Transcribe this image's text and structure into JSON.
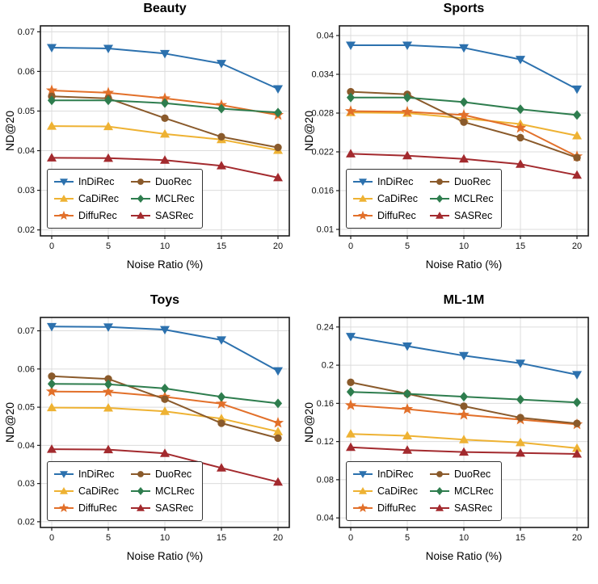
{
  "figure": {
    "xlabel": "Noise Ratio (%)",
    "ylabel": "ND@20"
  },
  "series_meta": [
    {
      "name": "InDiRec",
      "color": "#2c71ae",
      "marker": "triangle-down"
    },
    {
      "name": "CaDiRec",
      "color": "#eeb233",
      "marker": "triangle-up"
    },
    {
      "name": "DiffuRec",
      "color": "#e2702a",
      "marker": "star"
    },
    {
      "name": "DuoRec",
      "color": "#8a5a2b",
      "marker": "circle"
    },
    {
      "name": "MCLRec",
      "color": "#2e7d4e",
      "marker": "diamond"
    },
    {
      "name": "SASRec",
      "color": "#a32a2e",
      "marker": "triangle-up"
    }
  ],
  "chart_data": [
    {
      "type": "line",
      "title": "Beauty",
      "xlabel": "Noise Ratio (%)",
      "ylabel": "ND@20",
      "x": [
        0,
        5,
        10,
        15,
        20
      ],
      "xlim": [
        -1,
        21
      ],
      "ylim": [
        0.0185,
        0.0715
      ],
      "xticks": [
        0,
        5,
        10,
        15,
        20
      ],
      "xtick_labels": [
        "0",
        "5",
        "10",
        "15",
        "20"
      ],
      "yticks": [
        0.02,
        0.03,
        0.04,
        0.05,
        0.06,
        0.07
      ],
      "ytick_labels": [
        "0.02",
        "0.03",
        "0.04",
        "0.05",
        "0.06",
        "0.07"
      ],
      "legend_position": "lower left",
      "grid": true,
      "series": [
        {
          "name": "InDiRec",
          "values": [
            0.066,
            0.0658,
            0.0645,
            0.062,
            0.0556
          ]
        },
        {
          "name": "CaDiRec",
          "values": [
            0.0462,
            0.0461,
            0.0442,
            0.0428,
            0.0401
          ]
        },
        {
          "name": "DiffuRec",
          "values": [
            0.0552,
            0.0546,
            0.0532,
            0.0515,
            0.049
          ]
        },
        {
          "name": "DuoRec",
          "values": [
            0.0537,
            0.0532,
            0.0482,
            0.0435,
            0.0408
          ]
        },
        {
          "name": "MCLRec",
          "values": [
            0.0527,
            0.0527,
            0.052,
            0.0506,
            0.0496
          ]
        },
        {
          "name": "SASRec",
          "values": [
            0.0382,
            0.0381,
            0.0376,
            0.0362,
            0.0332
          ]
        }
      ]
    },
    {
      "type": "line",
      "title": "Sports",
      "xlabel": "Noise Ratio (%)",
      "ylabel": "ND@20",
      "x": [
        0,
        5,
        10,
        15,
        20
      ],
      "xlim": [
        -1,
        21
      ],
      "ylim": [
        0.009,
        0.0415
      ],
      "xticks": [
        0,
        5,
        10,
        15,
        20
      ],
      "xtick_labels": [
        "0",
        "5",
        "10",
        "15",
        "20"
      ],
      "yticks": [
        0.01,
        0.016,
        0.022,
        0.028,
        0.034,
        0.04
      ],
      "ytick_labels": [
        "0.01",
        "0.016",
        "0.022",
        "0.028",
        "0.034",
        "0.04"
      ],
      "legend_position": "lower left",
      "grid": true,
      "series": [
        {
          "name": "InDiRec",
          "values": [
            0.0385,
            0.0385,
            0.0381,
            0.0363,
            0.0317
          ]
        },
        {
          "name": "CaDiRec",
          "values": [
            0.0281,
            0.028,
            0.0272,
            0.0263,
            0.0245
          ]
        },
        {
          "name": "DiffuRec",
          "values": [
            0.0283,
            0.0282,
            0.0277,
            0.0257,
            0.0213
          ]
        },
        {
          "name": "DuoRec",
          "values": [
            0.0313,
            0.0309,
            0.0266,
            0.0242,
            0.0211
          ]
        },
        {
          "name": "MCLRec",
          "values": [
            0.0304,
            0.0304,
            0.0297,
            0.0286,
            0.0277
          ]
        },
        {
          "name": "SASRec",
          "values": [
            0.0217,
            0.0214,
            0.0209,
            0.0201,
            0.0184
          ]
        }
      ]
    },
    {
      "type": "line",
      "title": "Toys",
      "xlabel": "Noise Ratio (%)",
      "ylabel": "ND@20",
      "x": [
        0,
        5,
        10,
        15,
        20
      ],
      "xlim": [
        -1,
        21
      ],
      "ylim": [
        0.0185,
        0.0735
      ],
      "xticks": [
        0,
        5,
        10,
        15,
        20
      ],
      "xtick_labels": [
        "0",
        "5",
        "10",
        "15",
        "20"
      ],
      "yticks": [
        0.02,
        0.03,
        0.04,
        0.05,
        0.06,
        0.07
      ],
      "ytick_labels": [
        "0.02",
        "0.03",
        "0.04",
        "0.05",
        "0.06",
        "0.07"
      ],
      "legend_position": "lower left",
      "grid": true,
      "series": [
        {
          "name": "InDiRec",
          "values": [
            0.0711,
            0.071,
            0.0703,
            0.0676,
            0.0595
          ]
        },
        {
          "name": "CaDiRec",
          "values": [
            0.0499,
            0.0498,
            0.0489,
            0.047,
            0.0436
          ]
        },
        {
          "name": "DiffuRec",
          "values": [
            0.0541,
            0.054,
            0.0527,
            0.0509,
            0.0459
          ]
        },
        {
          "name": "DuoRec",
          "values": [
            0.0581,
            0.0574,
            0.0521,
            0.0458,
            0.0419
          ]
        },
        {
          "name": "MCLRec",
          "values": [
            0.0561,
            0.056,
            0.0549,
            0.0527,
            0.051
          ]
        },
        {
          "name": "SASRec",
          "values": [
            0.039,
            0.0389,
            0.0379,
            0.0341,
            0.0304
          ]
        }
      ]
    },
    {
      "type": "line",
      "title": "ML-1M",
      "xlabel": "Noise Ratio (%)",
      "ylabel": "ND@20",
      "x": [
        0,
        5,
        10,
        15,
        20
      ],
      "xlim": [
        -1,
        21
      ],
      "ylim": [
        0.03,
        0.25
      ],
      "xticks": [
        0,
        5,
        10,
        15,
        20
      ],
      "xtick_labels": [
        "0",
        "5",
        "10",
        "15",
        "20"
      ],
      "yticks": [
        0.04,
        0.08,
        0.12,
        0.16,
        0.2,
        0.24
      ],
      "ytick_labels": [
        "0.04",
        "0.08",
        "0.12",
        "0.16",
        "0.2",
        "0.24"
      ],
      "legend_position": "lower left",
      "grid": true,
      "series": [
        {
          "name": "InDiRec",
          "values": [
            0.23,
            0.22,
            0.21,
            0.202,
            0.19
          ]
        },
        {
          "name": "CaDiRec",
          "values": [
            0.128,
            0.126,
            0.122,
            0.119,
            0.113
          ]
        },
        {
          "name": "DiffuRec",
          "values": [
            0.158,
            0.154,
            0.148,
            0.143,
            0.138
          ]
        },
        {
          "name": "DuoRec",
          "values": [
            0.182,
            0.17,
            0.157,
            0.145,
            0.139
          ]
        },
        {
          "name": "MCLRec",
          "values": [
            0.172,
            0.17,
            0.167,
            0.164,
            0.161
          ]
        },
        {
          "name": "SASRec",
          "values": [
            0.114,
            0.111,
            0.109,
            0.108,
            0.107
          ]
        }
      ]
    }
  ]
}
